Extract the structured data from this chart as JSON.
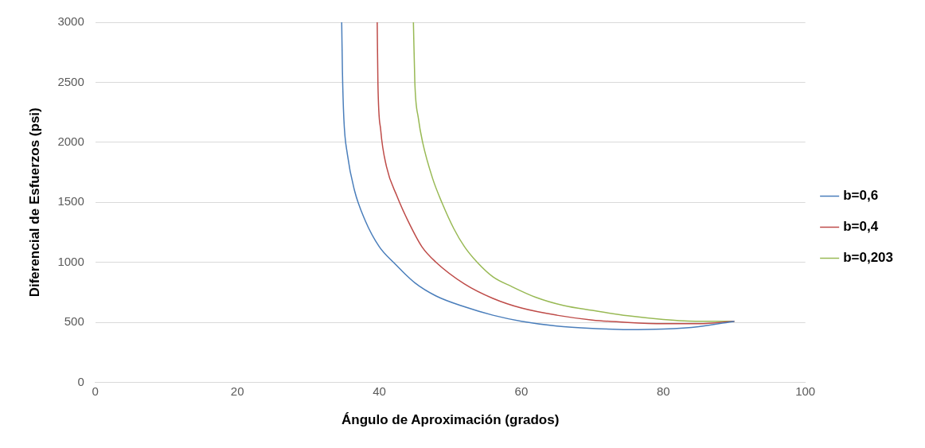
{
  "chart_data": {
    "type": "line",
    "xlabel": "Ángulo de Aproximación (grados)",
    "ylabel": "Diferencial de Esfuerzos (psi)",
    "xlim": [
      0,
      100
    ],
    "xticks": [
      0,
      20,
      40,
      60,
      80,
      100
    ],
    "ylim": [
      0,
      3000
    ],
    "yticks": [
      0,
      500,
      1000,
      1500,
      2000,
      2500,
      3000
    ],
    "grid": "y",
    "legend": "right",
    "marker": "none",
    "line_style": "solid",
    "series": [
      {
        "name": "b=0,6",
        "color": "#4a7ebb",
        "x": [
          34.7,
          34.8,
          35,
          35.5,
          36.5,
          38,
          40,
          42,
          45,
          48,
          52,
          56,
          60,
          65,
          70,
          75,
          80,
          85,
          90
        ],
        "values": [
          3000,
          2600,
          2200,
          1900,
          1600,
          1350,
          1130,
          1000,
          830,
          720,
          630,
          560,
          510,
          470,
          450,
          440,
          445,
          465,
          510
        ]
      },
      {
        "name": "b=0,4",
        "color": "#be4b48",
        "x": [
          39.7,
          39.8,
          40.2,
          41,
          42.5,
          44,
          46,
          48,
          52,
          56,
          60,
          65,
          70,
          75,
          80,
          85,
          90
        ],
        "values": [
          3000,
          2500,
          2100,
          1800,
          1550,
          1350,
          1130,
          1000,
          820,
          700,
          620,
          560,
          520,
          500,
          490,
          490,
          510
        ]
      },
      {
        "name": "b=0,203",
        "color": "#98b954",
        "x": [
          44.8,
          45,
          45.5,
          46.1,
          47.5,
          48.8,
          50.5,
          52,
          53.8,
          56,
          58.6,
          62,
          66,
          70,
          75,
          80,
          85,
          90
        ],
        "values": [
          3000,
          2500,
          2200,
          2000,
          1700,
          1500,
          1280,
          1130,
          1000,
          880,
          800,
          710,
          640,
          600,
          555,
          525,
          510,
          510
        ]
      }
    ]
  }
}
